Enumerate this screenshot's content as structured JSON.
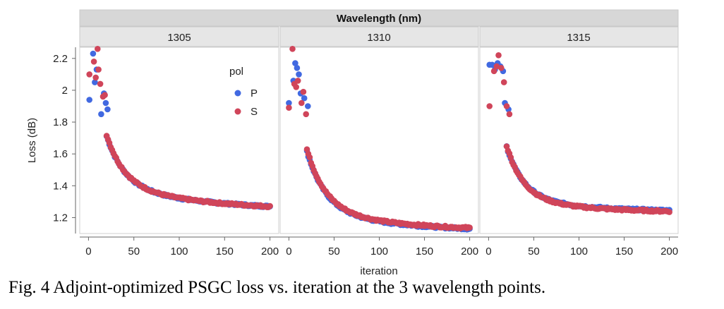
{
  "caption": "Fig. 4 Adjoint-optimized PSGC loss vs. iteration at the 3 wavelength points.",
  "chart_data": {
    "type": "scatter",
    "group_title": "Wavelength (nm)",
    "panels": [
      "1305",
      "1310",
      "1315"
    ],
    "xlabel": "iteration",
    "ylabel": "Loss (dB)",
    "xlim": [
      -5,
      205
    ],
    "ylim": [
      1.1,
      2.27
    ],
    "x_ticks": [
      0,
      50,
      100,
      150,
      200
    ],
    "y_ticks": [
      1.2,
      1.4,
      1.6,
      1.8,
      2,
      2.2
    ],
    "y_tick_labels": [
      "1.2",
      "1.4",
      "1.6",
      "1.8",
      "2",
      "2.2"
    ],
    "legend": {
      "title": "pol",
      "position": "top-right of first panel",
      "entries": [
        "P",
        "S"
      ]
    },
    "colors": {
      "P": "#4169e1",
      "S": "#d0455a"
    },
    "series_params": {
      "1305": {
        "P": {
          "final": 1.27,
          "amp": 0.86,
          "tau": 20,
          "amp2": 0.19,
          "tau2": 120
        },
        "S": {
          "final": 1.27,
          "amp": 0.88,
          "tau": 20,
          "amp2": 0.19,
          "tau2": 120
        }
      },
      "1310": {
        "P": {
          "final": 1.13,
          "amp": 0.98,
          "tau": 21,
          "amp2": 0.16,
          "tau2": 110
        },
        "S": {
          "final": 1.135,
          "amp": 1.0,
          "tau": 21,
          "amp2": 0.16,
          "tau2": 110
        }
      },
      "1315": {
        "P": {
          "final": 1.245,
          "amp": 0.93,
          "tau": 19,
          "amp2": 0.11,
          "tau2": 90
        },
        "S": {
          "final": 1.24,
          "amp": 0.96,
          "tau": 19,
          "amp2": 0.11,
          "tau2": 90
        }
      }
    },
    "early_points": {
      "1305": {
        "P": [
          [
            1,
            1.94
          ],
          [
            5,
            2.23
          ],
          [
            7,
            2.05
          ],
          [
            9,
            2.13
          ],
          [
            14,
            1.85
          ],
          [
            17,
            1.98
          ],
          [
            19,
            1.92
          ],
          [
            21,
            1.88
          ]
        ],
        "S": [
          [
            1,
            2.1
          ],
          [
            6,
            2.18
          ],
          [
            8,
            2.08
          ],
          [
            10,
            2.26
          ],
          [
            11,
            2.13
          ],
          [
            13,
            2.04
          ],
          [
            16,
            1.96
          ],
          [
            18,
            1.97
          ]
        ]
      },
      "1310": {
        "P": [
          [
            0,
            1.92
          ],
          [
            5,
            2.06
          ],
          [
            7,
            2.17
          ],
          [
            9,
            2.14
          ],
          [
            11,
            2.1
          ],
          [
            13,
            1.98
          ],
          [
            17,
            1.95
          ],
          [
            21,
            1.9
          ]
        ],
        "S": [
          [
            0,
            1.89
          ],
          [
            4,
            2.26
          ],
          [
            6,
            2.04
          ],
          [
            8,
            2.02
          ],
          [
            10,
            2.06
          ],
          [
            14,
            1.92
          ],
          [
            16,
            1.99
          ],
          [
            19,
            1.85
          ]
        ]
      },
      "1315": {
        "P": [
          [
            1,
            2.16
          ],
          [
            4,
            2.16
          ],
          [
            7,
            2.13
          ],
          [
            10,
            2.17
          ],
          [
            13,
            2.15
          ],
          [
            16,
            2.12
          ],
          [
            18,
            1.92
          ],
          [
            22,
            1.88
          ]
        ],
        "S": [
          [
            1,
            1.9
          ],
          [
            6,
            2.12
          ],
          [
            9,
            2.15
          ],
          [
            11,
            2.22
          ],
          [
            14,
            2.14
          ],
          [
            17,
            2.05
          ],
          [
            20,
            1.9
          ],
          [
            23,
            1.85
          ]
        ]
      }
    }
  }
}
